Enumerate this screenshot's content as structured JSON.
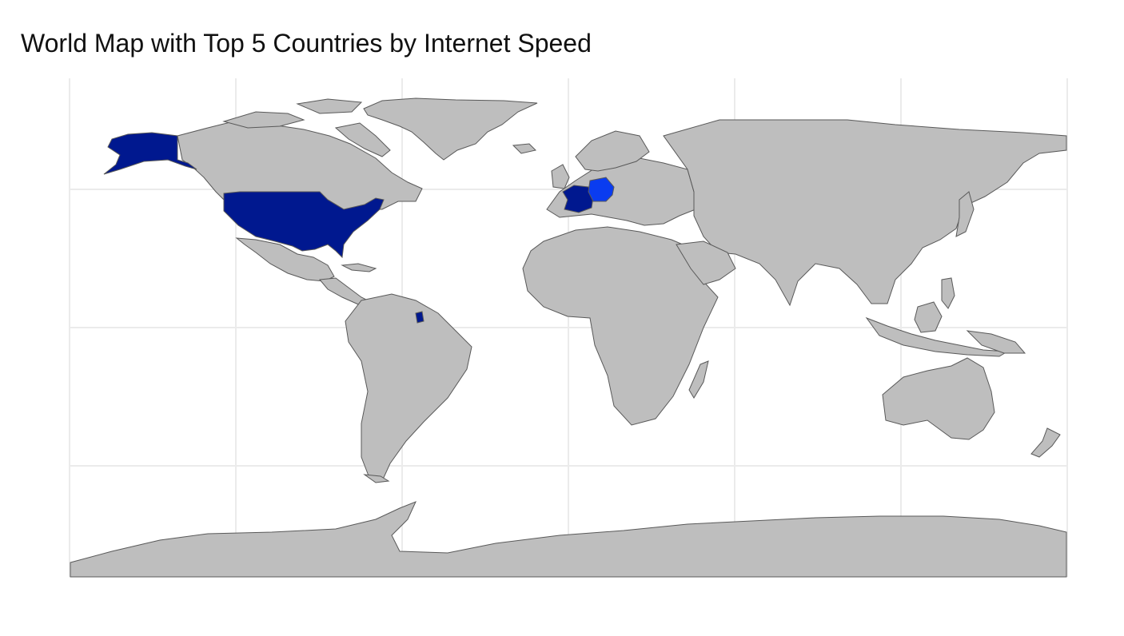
{
  "title": "World Map with Top 5 Countries by Internet Speed",
  "map": {
    "projection": "equirectangular",
    "graticule": {
      "lon_ticks": [
        -150,
        -100,
        -50,
        0,
        50,
        100,
        150
      ],
      "lat_ticks": [
        -50,
        0,
        50
      ]
    },
    "colors": {
      "background": "#ffffff",
      "land": "#bebebe",
      "border": "#595959",
      "gridline": "#ebebeb",
      "highlight_dark": "#00188f",
      "highlight_bright": "#0a3cf0"
    },
    "highlighted_countries": [
      {
        "name": "United States",
        "shade": "dark"
      },
      {
        "name": "France",
        "shade": "dark"
      },
      {
        "name": "French Guiana",
        "shade": "dark"
      },
      {
        "name": "Germany",
        "shade": "bright"
      }
    ]
  }
}
